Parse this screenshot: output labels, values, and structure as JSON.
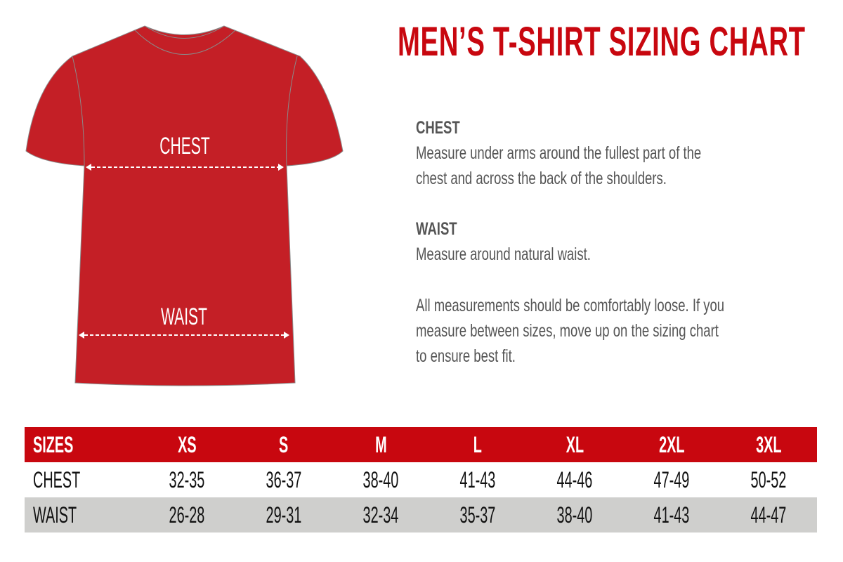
{
  "title": "MEN’S T-SHIRT SIZING CHART",
  "colors": {
    "brand_red": "#c8070f",
    "shirt_red": "#c41f26",
    "row_gray": "#cfcfcd",
    "text_gray": "#555555"
  },
  "shirt": {
    "chest_label": "CHEST",
    "waist_label": "WAIST"
  },
  "info": {
    "chest_heading": "CHEST",
    "chest_line1": "Measure under arms around the fullest part of the",
    "chest_line2": "chest and across the back of the shoulders.",
    "waist_heading": "WAIST",
    "waist_line1": "Measure around natural waist.",
    "note_line1": "All measurements should be comfortably loose. If you",
    "note_line2": "measure between sizes, move up on the sizing chart",
    "note_line3": "to ensure best fit."
  },
  "table": {
    "header": [
      "SIZES",
      "XS",
      "S",
      "M",
      "L",
      "XL",
      "2XL",
      "3XL"
    ],
    "rows": [
      [
        "CHEST",
        "32-35",
        "36-37",
        "38-40",
        "41-43",
        "44-46",
        "47-49",
        "50-52"
      ],
      [
        "WAIST",
        "26-28",
        "29-31",
        "32-34",
        "35-37",
        "38-40",
        "41-43",
        "44-47"
      ]
    ]
  }
}
